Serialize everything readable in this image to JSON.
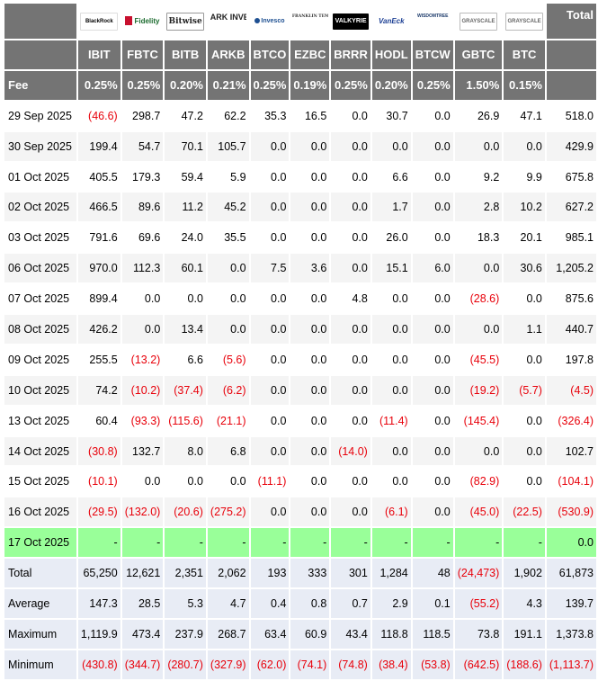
{
  "header": {
    "total_label": "Total",
    "fee_label": "Fee",
    "logos": [
      {
        "text": "BlackRock",
        "icon": "blackrock-logo"
      },
      {
        "text": "Fidelity",
        "icon": "fidelity-logo"
      },
      {
        "text": "Bitwise",
        "icon": "bitwise-logo"
      },
      {
        "text": "ARK INVEST",
        "icon": "ark-logo"
      },
      {
        "text": "Invesco",
        "icon": "invesco-logo"
      },
      {
        "text": "FRANKLIN TEMPLETON",
        "icon": "franklin-logo"
      },
      {
        "text": "VALKYRIE",
        "icon": "valkyrie-logo"
      },
      {
        "text": "VanEck",
        "icon": "vaneck-logo"
      },
      {
        "text": "WISDOMTREE",
        "icon": "wisdomtree-logo"
      },
      {
        "text": "GRAYSCALE",
        "icon": "grayscale-logo"
      },
      {
        "text": "GRAYSCALE",
        "icon": "grayscale-logo"
      }
    ],
    "tickers": [
      "IBIT",
      "FBTC",
      "BITB",
      "ARKB",
      "BTCO",
      "EZBC",
      "BRRR",
      "HODL",
      "BTCW",
      "GBTC",
      "BTC"
    ],
    "fees": [
      "0.25%",
      "0.25%",
      "0.20%",
      "0.21%",
      "0.25%",
      "0.19%",
      "0.25%",
      "0.20%",
      "0.25%",
      "1.50%",
      "0.15%"
    ]
  },
  "rows": [
    {
      "date": "29 Sep 2025",
      "values": [
        "(46.6)",
        "298.7",
        "47.2",
        "62.2",
        "35.3",
        "16.5",
        "0.0",
        "30.7",
        "0.0",
        "26.9",
        "47.1"
      ],
      "total": "518.0"
    },
    {
      "date": "30 Sep 2025",
      "values": [
        "199.4",
        "54.7",
        "70.1",
        "105.7",
        "0.0",
        "0.0",
        "0.0",
        "0.0",
        "0.0",
        "0.0",
        "0.0"
      ],
      "total": "429.9"
    },
    {
      "date": "01 Oct 2025",
      "values": [
        "405.5",
        "179.3",
        "59.4",
        "5.9",
        "0.0",
        "0.0",
        "0.0",
        "6.6",
        "0.0",
        "9.2",
        "9.9"
      ],
      "total": "675.8"
    },
    {
      "date": "02 Oct 2025",
      "values": [
        "466.5",
        "89.6",
        "11.2",
        "45.2",
        "0.0",
        "0.0",
        "0.0",
        "1.7",
        "0.0",
        "2.8",
        "10.2"
      ],
      "total": "627.2"
    },
    {
      "date": "03 Oct 2025",
      "values": [
        "791.6",
        "69.6",
        "24.0",
        "35.5",
        "0.0",
        "0.0",
        "0.0",
        "26.0",
        "0.0",
        "18.3",
        "20.1"
      ],
      "total": "985.1"
    },
    {
      "date": "06 Oct 2025",
      "values": [
        "970.0",
        "112.3",
        "60.1",
        "0.0",
        "7.5",
        "3.6",
        "0.0",
        "15.1",
        "6.0",
        "0.0",
        "30.6"
      ],
      "total": "1,205.2"
    },
    {
      "date": "07 Oct 2025",
      "values": [
        "899.4",
        "0.0",
        "0.0",
        "0.0",
        "0.0",
        "0.0",
        "4.8",
        "0.0",
        "0.0",
        "(28.6)",
        "0.0"
      ],
      "total": "875.6"
    },
    {
      "date": "08 Oct 2025",
      "values": [
        "426.2",
        "0.0",
        "13.4",
        "0.0",
        "0.0",
        "0.0",
        "0.0",
        "0.0",
        "0.0",
        "0.0",
        "1.1"
      ],
      "total": "440.7"
    },
    {
      "date": "09 Oct 2025",
      "values": [
        "255.5",
        "(13.2)",
        "6.6",
        "(5.6)",
        "0.0",
        "0.0",
        "0.0",
        "0.0",
        "0.0",
        "(45.5)",
        "0.0"
      ],
      "total": "197.8"
    },
    {
      "date": "10 Oct 2025",
      "values": [
        "74.2",
        "(10.2)",
        "(37.4)",
        "(6.2)",
        "0.0",
        "0.0",
        "0.0",
        "0.0",
        "0.0",
        "(19.2)",
        "(5.7)"
      ],
      "total": "(4.5)"
    },
    {
      "date": "13 Oct 2025",
      "values": [
        "60.4",
        "(93.3)",
        "(115.6)",
        "(21.1)",
        "0.0",
        "0.0",
        "0.0",
        "(11.4)",
        "0.0",
        "(145.4)",
        "0.0"
      ],
      "total": "(326.4)"
    },
    {
      "date": "14 Oct 2025",
      "values": [
        "(30.8)",
        "132.7",
        "8.0",
        "6.8",
        "0.0",
        "0.0",
        "(14.0)",
        "0.0",
        "0.0",
        "0.0",
        "0.0"
      ],
      "total": "102.7"
    },
    {
      "date": "15 Oct 2025",
      "values": [
        "(10.1)",
        "0.0",
        "0.0",
        "0.0",
        "(11.1)",
        "0.0",
        "0.0",
        "0.0",
        "0.0",
        "(82.9)",
        "0.0"
      ],
      "total": "(104.1)"
    },
    {
      "date": "16 Oct 2025",
      "values": [
        "(29.5)",
        "(132.0)",
        "(20.6)",
        "(275.2)",
        "0.0",
        "0.0",
        "0.0",
        "(6.1)",
        "0.0",
        "(45.0)",
        "(22.5)"
      ],
      "total": "(530.9)"
    },
    {
      "date": "17 Oct 2025",
      "values": [
        "-",
        "-",
        "-",
        "-",
        "-",
        "-",
        "-",
        "-",
        "-",
        "-",
        "-"
      ],
      "total": "0.0",
      "highlight": true
    }
  ],
  "summary": [
    {
      "label": "Total",
      "values": [
        "65,250",
        "12,621",
        "2,351",
        "2,062",
        "193",
        "333",
        "301",
        "1,284",
        "48",
        "(24,473)",
        "1,902"
      ],
      "total": "61,873"
    },
    {
      "label": "Average",
      "values": [
        "147.3",
        "28.5",
        "5.3",
        "4.7",
        "0.4",
        "0.8",
        "0.7",
        "2.9",
        "0.1",
        "(55.2)",
        "4.3"
      ],
      "total": "139.7"
    },
    {
      "label": "Maximum",
      "values": [
        "1,119.9",
        "473.4",
        "237.9",
        "268.7",
        "63.4",
        "60.9",
        "43.4",
        "118.8",
        "118.5",
        "73.8",
        "191.1"
      ],
      "total": "1,373.8"
    },
    {
      "label": "Minimum",
      "values": [
        "(430.8)",
        "(344.7)",
        "(280.7)",
        "(327.9)",
        "(62.0)",
        "(74.1)",
        "(74.8)",
        "(38.4)",
        "(53.8)",
        "(642.5)",
        "(188.6)"
      ],
      "total": "(1,113.7)"
    }
  ],
  "colors": {
    "header_bg": "#747474",
    "negative": "#e8000a",
    "highlight_row": "#99ff99",
    "summary_bg": "#e8ecf5"
  }
}
